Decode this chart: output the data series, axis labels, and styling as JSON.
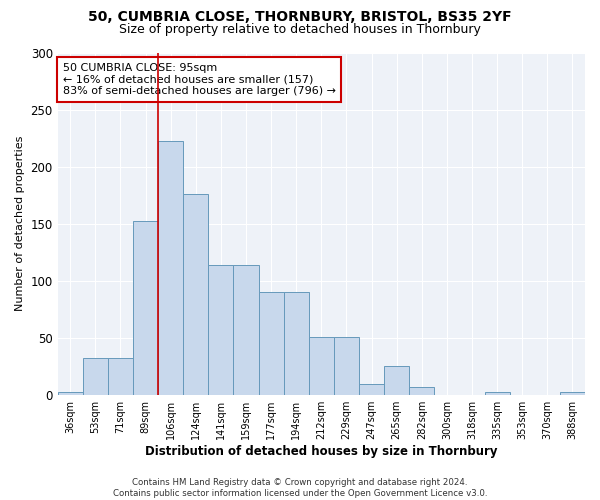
{
  "title": "50, CUMBRIA CLOSE, THORNBURY, BRISTOL, BS35 2YF",
  "subtitle": "Size of property relative to detached houses in Thornbury",
  "xlabel": "Distribution of detached houses by size in Thornbury",
  "ylabel": "Number of detached properties",
  "bar_labels": [
    "36sqm",
    "53sqm",
    "71sqm",
    "89sqm",
    "106sqm",
    "124sqm",
    "141sqm",
    "159sqm",
    "177sqm",
    "194sqm",
    "212sqm",
    "229sqm",
    "247sqm",
    "265sqm",
    "282sqm",
    "300sqm",
    "318sqm",
    "335sqm",
    "353sqm",
    "370sqm",
    "388sqm"
  ],
  "bar_values": [
    2,
    32,
    32,
    152,
    222,
    176,
    114,
    114,
    90,
    90,
    51,
    51,
    9,
    25,
    7,
    0,
    0,
    2,
    0,
    0,
    2
  ],
  "bar_color": "#c8d8ec",
  "bar_edgecolor": "#6699bb",
  "vline_x": 3.5,
  "vline_color": "#cc0000",
  "annotation_text": "50 CUMBRIA CLOSE: 95sqm\n← 16% of detached houses are smaller (157)\n83% of semi-detached houses are larger (796) →",
  "annotation_box_color": "#ffffff",
  "annotation_box_edgecolor": "#cc0000",
  "ylim": [
    0,
    300
  ],
  "yticks": [
    0,
    50,
    100,
    150,
    200,
    250,
    300
  ],
  "bg_color": "#eef2f8",
  "footer": "Contains HM Land Registry data © Crown copyright and database right 2024.\nContains public sector information licensed under the Open Government Licence v3.0."
}
